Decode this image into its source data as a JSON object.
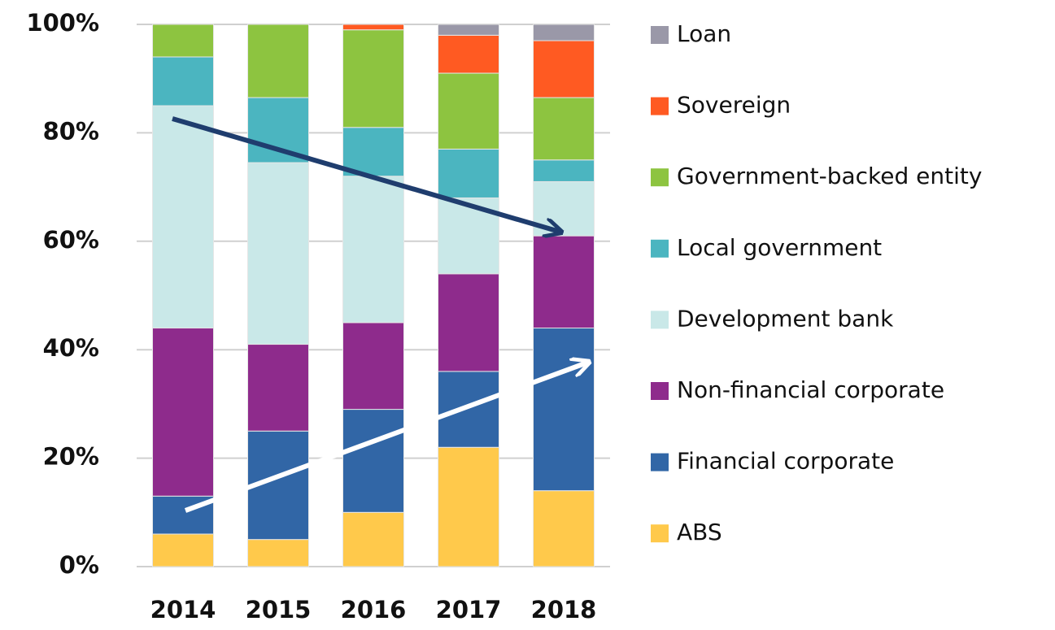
{
  "chart_data": {
    "type": "stacked_bar",
    "categories": [
      "2014",
      "2015",
      "2016",
      "2017",
      "2018"
    ],
    "series": [
      {
        "name": "ABS",
        "color": "#ffc94b",
        "values": [
          6,
          5,
          10,
          22,
          14
        ]
      },
      {
        "name": "Financial corporate",
        "color": "#3166a6",
        "values": [
          7,
          20,
          19,
          14,
          30
        ]
      },
      {
        "name": "Non-financial corporate",
        "color": "#8e2b8c",
        "values": [
          31,
          16,
          16,
          18,
          17
        ]
      },
      {
        "name": "Development bank",
        "color": "#c9e8e8",
        "values": [
          41,
          33.5,
          27,
          14,
          10
        ]
      },
      {
        "name": "Local government",
        "color": "#4bb5c0",
        "values": [
          9,
          12,
          9,
          9,
          4
        ]
      },
      {
        "name": "Government-backed entity",
        "color": "#8dc440",
        "values": [
          6,
          13.5,
          18,
          14,
          11.5
        ]
      },
      {
        "name": "Sovereign",
        "color": "#ff5a22",
        "values": [
          0,
          0,
          1,
          7,
          10.5
        ]
      },
      {
        "name": "Loan",
        "color": "#9a98a8",
        "values": [
          0,
          0,
          0,
          2,
          3
        ]
      }
    ],
    "ylim": [
      0,
      100
    ],
    "yticks": [
      {
        "value": 0,
        "label": "0%"
      },
      {
        "value": 20,
        "label": "20%"
      },
      {
        "value": 40,
        "label": "40%"
      },
      {
        "value": 60,
        "label": "60%"
      },
      {
        "value": 80,
        "label": "80%"
      },
      {
        "value": 100,
        "label": "100%"
      }
    ],
    "grid": true
  }
}
